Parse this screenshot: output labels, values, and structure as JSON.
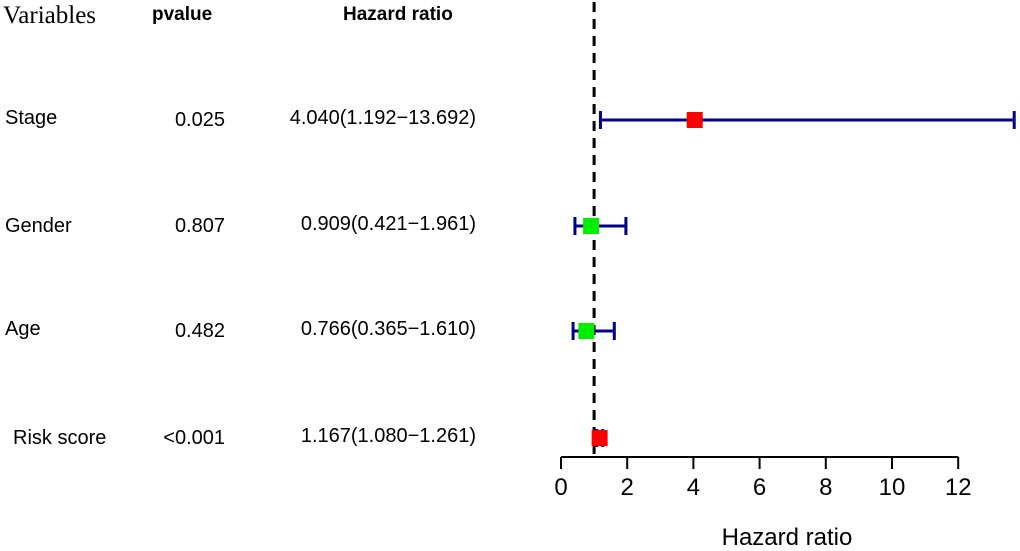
{
  "header": {
    "variables": "Variables",
    "pvalue": "pvalue",
    "hazard_ratio": "Hazard ratio"
  },
  "rows": [
    {
      "variable": "Stage",
      "pvalue": "0.025",
      "hr_text": "4.040(1.192−13.692)"
    },
    {
      "variable": "Gender",
      "pvalue": "0.807",
      "hr_text": "0.909(0.421−1.961)"
    },
    {
      "variable": "Age",
      "pvalue": "0.482",
      "hr_text": "0.766(0.365−1.610)"
    },
    {
      "variable": "Risk score",
      "pvalue": "<0.001",
      "hr_text": "1.167(1.080−1.261)"
    }
  ],
  "chart_data": {
    "type": "forest",
    "xlabel": "Hazard ratio",
    "xticks": [
      0,
      2,
      4,
      6,
      8,
      10,
      12
    ],
    "xlim": [
      0,
      12
    ],
    "reference_line": 1,
    "colors": {
      "hr_above_1": "#ff0000",
      "hr_below_1": "#00ee00",
      "ci": "#00008b",
      "reference": "#000000"
    },
    "series": [
      {
        "category": "Stage",
        "hr": 4.04,
        "lower": 1.192,
        "upper": 13.692
      },
      {
        "category": "Gender",
        "hr": 0.909,
        "lower": 0.421,
        "upper": 1.961
      },
      {
        "category": "Age",
        "hr": 0.766,
        "lower": 0.365,
        "upper": 1.61
      },
      {
        "category": "Risk score",
        "hr": 1.167,
        "lower": 1.08,
        "upper": 1.261
      }
    ]
  }
}
